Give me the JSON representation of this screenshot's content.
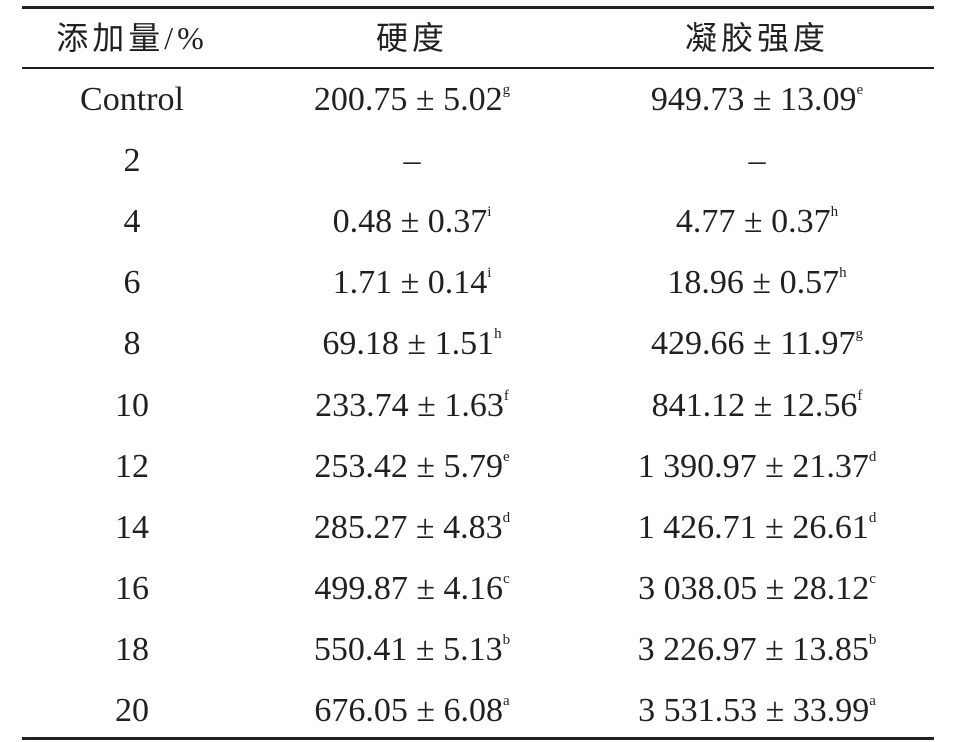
{
  "table": {
    "header": [
      "添加量/%",
      "硬度",
      "凝胶强度"
    ],
    "rows": [
      [
        "Control",
        {
          "text": "200.75 ± 5.02",
          "sup": "g"
        },
        {
          "text": "949.73 ± 13.09",
          "sup": "e"
        }
      ],
      [
        "2",
        "–",
        "–"
      ],
      [
        "4",
        {
          "text": "0.48 ± 0.37",
          "sup": "i"
        },
        {
          "text": "4.77 ± 0.37",
          "sup": "h"
        }
      ],
      [
        "6",
        {
          "text": "1.71 ± 0.14",
          "sup": "i"
        },
        {
          "text": "18.96 ± 0.57",
          "sup": "h"
        }
      ],
      [
        "8",
        {
          "text": "69.18 ± 1.51",
          "sup": "h"
        },
        {
          "text": "429.66 ± 11.97",
          "sup": "g"
        }
      ],
      [
        "10",
        {
          "text": "233.74 ± 1.63",
          "sup": "f"
        },
        {
          "text": "841.12 ± 12.56",
          "sup": "f"
        }
      ],
      [
        "12",
        {
          "text": "253.42 ± 5.79",
          "sup": "e"
        },
        {
          "text": "1 390.97 ± 21.37",
          "sup": "d"
        }
      ],
      [
        "14",
        {
          "text": "285.27 ± 4.83",
          "sup": "d"
        },
        {
          "text": "1 426.71 ± 26.61",
          "sup": "d"
        }
      ],
      [
        "16",
        {
          "text": "499.87 ± 4.16",
          "sup": "c"
        },
        {
          "text": "3 038.05 ± 28.12",
          "sup": "c"
        }
      ],
      [
        "18",
        {
          "text": "550.41 ± 5.13",
          "sup": "b"
        },
        {
          "text": "3 226.97 ± 13.85",
          "sup": "b"
        }
      ],
      [
        "20",
        {
          "text": "676.05 ± 6.08",
          "sup": "a"
        },
        {
          "text": "3 531.53 ± 33.99",
          "sup": "a"
        }
      ]
    ]
  }
}
